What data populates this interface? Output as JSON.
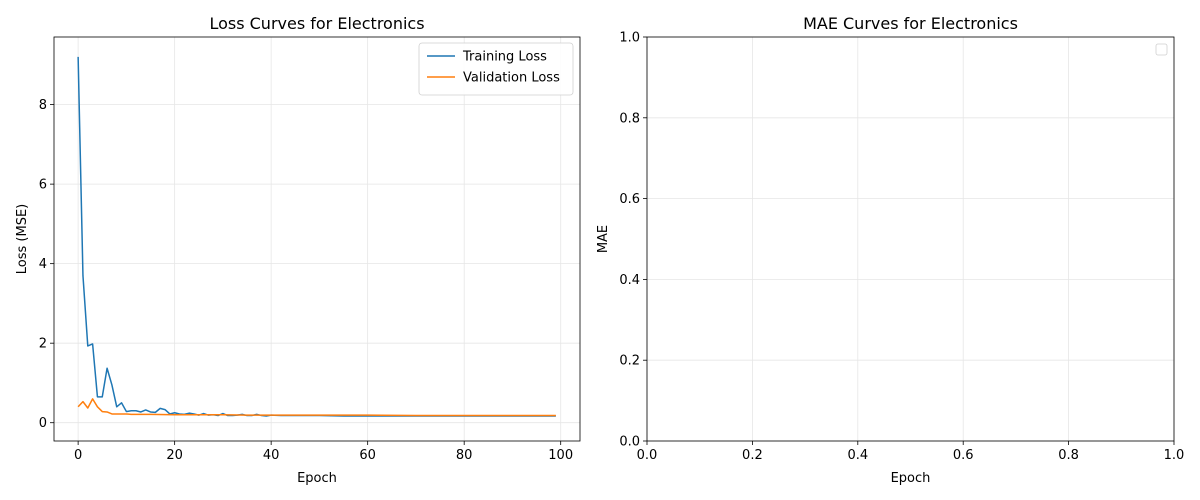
{
  "colors": {
    "training": "#1f77b4",
    "validation": "#ff7f0e",
    "grid": "#e6e6e6"
  },
  "chart_data": [
    {
      "type": "line",
      "title": "Loss Curves for Electronics",
      "xlabel": "Epoch",
      "ylabel": "Loss (MSE)",
      "xlim": [
        -5,
        104
      ],
      "ylim": [
        -0.46,
        9.7
      ],
      "grid": true,
      "legend_position": "top-right",
      "xticks": [
        0,
        20,
        40,
        60,
        80,
        100
      ],
      "xtick_labels": [
        "0",
        "20",
        "40",
        "60",
        "80",
        "100"
      ],
      "yticks": [
        0,
        2,
        4,
        6,
        8
      ],
      "ytick_labels": [
        "0",
        "2",
        "4",
        "6",
        "8"
      ],
      "series": [
        {
          "name": "Training Loss",
          "x": [
            0,
            1,
            2,
            3,
            4,
            5,
            6,
            7,
            8,
            9,
            10,
            11,
            12,
            13,
            14,
            15,
            16,
            17,
            18,
            19,
            20,
            21,
            22,
            23,
            24,
            25,
            26,
            27,
            28,
            29,
            30,
            31,
            32,
            33,
            34,
            35,
            36,
            37,
            38,
            39,
            40,
            42,
            45,
            50,
            55,
            60,
            65,
            70,
            75,
            80,
            85,
            90,
            95,
            99
          ],
          "values": [
            9.2,
            3.7,
            1.93,
            1.98,
            0.65,
            0.65,
            1.37,
            0.95,
            0.4,
            0.5,
            0.28,
            0.3,
            0.3,
            0.27,
            0.32,
            0.27,
            0.26,
            0.36,
            0.33,
            0.22,
            0.25,
            0.22,
            0.21,
            0.24,
            0.22,
            0.19,
            0.23,
            0.19,
            0.2,
            0.18,
            0.23,
            0.18,
            0.18,
            0.19,
            0.21,
            0.18,
            0.18,
            0.21,
            0.18,
            0.17,
            0.19,
            0.18,
            0.18,
            0.18,
            0.17,
            0.17,
            0.17,
            0.17,
            0.17,
            0.17,
            0.17,
            0.17,
            0.17,
            0.17
          ]
        },
        {
          "name": "Validation Loss",
          "x": [
            0,
            1,
            2,
            3,
            4,
            5,
            6,
            7,
            8,
            9,
            10,
            11,
            12,
            13,
            14,
            15,
            20,
            25,
            30,
            35,
            40,
            50,
            60,
            70,
            80,
            90,
            99
          ],
          "values": [
            0.4,
            0.53,
            0.37,
            0.6,
            0.4,
            0.28,
            0.27,
            0.22,
            0.22,
            0.22,
            0.22,
            0.21,
            0.21,
            0.21,
            0.21,
            0.21,
            0.2,
            0.2,
            0.2,
            0.19,
            0.19,
            0.19,
            0.19,
            0.18,
            0.18,
            0.18,
            0.18
          ]
        }
      ]
    },
    {
      "type": "line",
      "title": "MAE Curves for Electronics",
      "xlabel": "Epoch",
      "ylabel": "MAE",
      "xlim": [
        0,
        1
      ],
      "ylim": [
        0,
        1
      ],
      "grid": true,
      "legend_position": "top-right",
      "xticks": [
        0,
        0.2,
        0.4,
        0.6,
        0.8,
        1.0
      ],
      "xtick_labels": [
        "0.0",
        "0.2",
        "0.4",
        "0.6",
        "0.8",
        "1.0"
      ],
      "yticks": [
        0,
        0.2,
        0.4,
        0.6,
        0.8,
        1.0
      ],
      "ytick_labels": [
        "0.0",
        "0.2",
        "0.4",
        "0.6",
        "0.8",
        "1.0"
      ],
      "series": []
    }
  ]
}
